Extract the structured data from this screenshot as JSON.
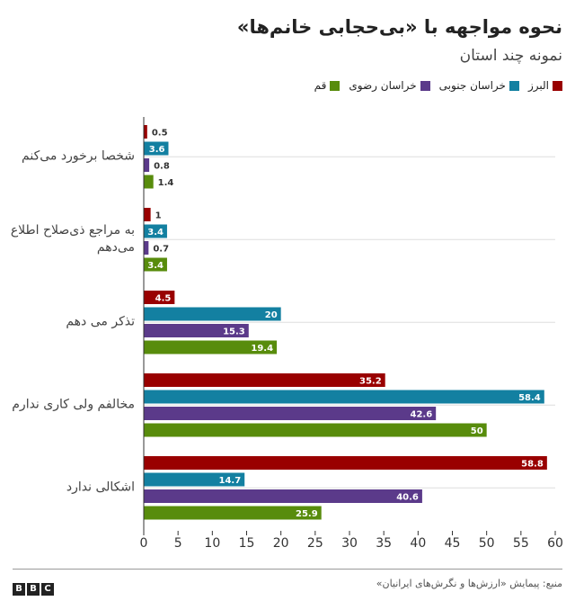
{
  "chart_data": {
    "type": "bar",
    "orientation": "horizontal",
    "title": "نحوه مواجهه با «بی‌حجابی خانم‌ها»",
    "subtitle": "نمونه چند استان",
    "categories": [
      "شخصا برخورد می‌کنم",
      "به مراجع ذی‌صلاح اطلاع می‌دهم",
      "تذکر می دهم",
      "مخالفم ولی کاری ندارم",
      "اشکالی ندارد"
    ],
    "series": [
      {
        "name": "البرز",
        "color": "#990000",
        "values": [
          0.5,
          1,
          4.5,
          35.2,
          58.8
        ]
      },
      {
        "name": "خراسان جنوبی",
        "color": "#1380a1",
        "values": [
          3.6,
          3.4,
          20,
          58.4,
          14.7
        ]
      },
      {
        "name": "خراسان رضوی",
        "color": "#5b3a8a",
        "values": [
          0.8,
          0.7,
          15.3,
          42.6,
          40.6
        ]
      },
      {
        "name": "قم",
        "color": "#588c0c",
        "values": [
          1.4,
          3.4,
          19.4,
          50,
          25.9
        ]
      }
    ],
    "xlim": [
      0,
      60
    ],
    "xticks": [
      0,
      5,
      10,
      15,
      20,
      25,
      30,
      35,
      40,
      45,
      50,
      55,
      60
    ],
    "grid": true,
    "source": "منبع: پیمایش «ارزش‌ها و نگرش‌های ایرانیان»",
    "logo": [
      "B",
      "B",
      "C"
    ]
  }
}
